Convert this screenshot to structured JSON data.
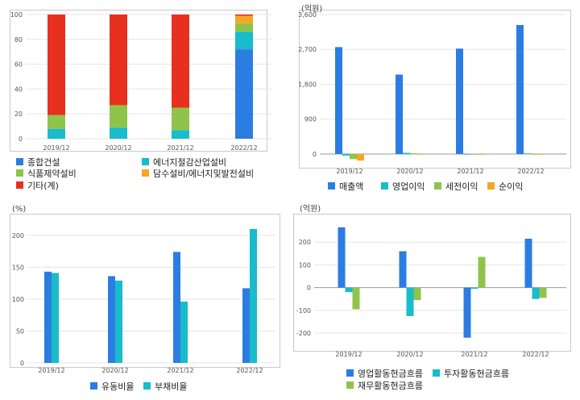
{
  "colors": {
    "blue": "#2b7de1",
    "teal": "#18bccb",
    "green": "#8fc44a",
    "orange": "#f5a623",
    "red": "#e8301f",
    "frame": "#c9c9c9"
  },
  "chart_data": [
    {
      "type": "bar",
      "stacked": true,
      "categories": [
        "2019/12",
        "2020/12",
        "2021/12",
        "2022/12"
      ],
      "ylim": [
        0,
        100
      ],
      "yticks": [
        "0",
        "20",
        "40",
        "60",
        "80",
        "100"
      ],
      "series": [
        {
          "name": "종합건설",
          "color": "#2b7de1",
          "values": [
            0,
            0,
            0,
            72
          ]
        },
        {
          "name": "에너지절감산업설비",
          "color": "#18bccb",
          "values": [
            8,
            9,
            7,
            14
          ]
        },
        {
          "name": "식품제약설비",
          "color": "#8fc44a",
          "values": [
            11,
            18,
            18,
            7
          ]
        },
        {
          "name": "담수설비/에너지및발전설비",
          "color": "#f5a623",
          "values": [
            0,
            0,
            0,
            6
          ]
        },
        {
          "name": "기타(계)",
          "color": "#e8301f",
          "values": [
            81,
            73,
            75,
            1
          ]
        }
      ]
    },
    {
      "type": "bar",
      "unit": "(억원)",
      "categories": [
        "2019/12",
        "2020/12",
        "2021/12",
        "2022/12"
      ],
      "ylim": [
        -250,
        3600
      ],
      "yticks": [
        "0",
        "900",
        "1,800",
        "2,700",
        "3,600"
      ],
      "series": [
        {
          "name": "매출액",
          "color": "#2b7de1",
          "values": [
            2760,
            2050,
            2720,
            3330
          ]
        },
        {
          "name": "영업이익",
          "color": "#18bccb",
          "values": [
            -40,
            30,
            0,
            15
          ]
        },
        {
          "name": "세전이익",
          "color": "#8fc44a",
          "values": [
            -130,
            20,
            0,
            -10
          ]
        },
        {
          "name": "순이익",
          "color": "#f5a623",
          "values": [
            -170,
            0,
            0,
            -10
          ]
        }
      ]
    },
    {
      "type": "bar",
      "unit": "(%)",
      "categories": [
        "2019/12",
        "2020/12",
        "2021/12",
        "2022/12"
      ],
      "ylim": [
        0,
        225
      ],
      "yticks": [
        "0",
        "50",
        "100",
        "150",
        "200"
      ],
      "series": [
        {
          "name": "유동비율",
          "color": "#2b7de1",
          "values": [
            143,
            136,
            174,
            117
          ]
        },
        {
          "name": "부채비율",
          "color": "#18bccb",
          "values": [
            141,
            129,
            96,
            210
          ]
        }
      ]
    },
    {
      "type": "bar",
      "unit": "(억원)",
      "categories": [
        "2019/12",
        "2020/12",
        "2021/12",
        "2022/12"
      ],
      "ylim": [
        -260,
        300
      ],
      "yticks": [
        "-200",
        "-100",
        "0",
        "100",
        "200"
      ],
      "series": [
        {
          "name": "영업활동현금흐름",
          "color": "#2b7de1",
          "values": [
            265,
            160,
            -220,
            215
          ]
        },
        {
          "name": "투자활동현금흐름",
          "color": "#18bccb",
          "values": [
            -20,
            -125,
            -5,
            -50
          ]
        },
        {
          "name": "재무활동현금흐름",
          "color": "#8fc44a",
          "values": [
            -95,
            -55,
            135,
            -45
          ]
        }
      ]
    }
  ]
}
